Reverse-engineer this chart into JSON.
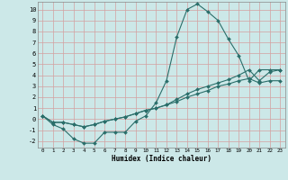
{
  "title": "",
  "xlabel": "Humidex (Indice chaleur)",
  "bg_color": "#cce8e8",
  "grid_color": "#d4a0a0",
  "line_color": "#2a6e6a",
  "xlim": [
    -0.5,
    23.5
  ],
  "ylim": [
    -2.6,
    10.7
  ],
  "xticks": [
    0,
    1,
    2,
    3,
    4,
    5,
    6,
    7,
    8,
    9,
    10,
    11,
    12,
    13,
    14,
    15,
    16,
    17,
    18,
    19,
    20,
    21,
    22,
    23
  ],
  "yticks": [
    -2,
    -1,
    0,
    1,
    2,
    3,
    4,
    5,
    6,
    7,
    8,
    9,
    10
  ],
  "line1_x": [
    0,
    1,
    2,
    3,
    4,
    5,
    6,
    7,
    8,
    9,
    10,
    11,
    12,
    13,
    14,
    15,
    16,
    17,
    18,
    19,
    20,
    21,
    22,
    23
  ],
  "line1_y": [
    0.3,
    -0.5,
    -0.9,
    -1.8,
    -2.2,
    -2.2,
    -1.2,
    -1.2,
    -1.2,
    -0.2,
    0.3,
    1.5,
    3.5,
    7.5,
    10.0,
    10.5,
    9.8,
    9.0,
    7.3,
    5.8,
    3.5,
    4.5,
    4.5,
    4.5
  ],
  "line2_x": [
    0,
    1,
    2,
    3,
    4,
    5,
    6,
    7,
    8,
    9,
    10,
    11,
    12,
    13,
    14,
    15,
    16,
    17,
    18,
    19,
    20,
    21,
    22,
    23
  ],
  "line2_y": [
    0.3,
    -0.3,
    -0.3,
    -0.5,
    -0.7,
    -0.5,
    -0.2,
    0.0,
    0.2,
    0.5,
    0.8,
    1.0,
    1.3,
    1.6,
    2.0,
    2.3,
    2.6,
    3.0,
    3.2,
    3.5,
    3.7,
    3.3,
    3.5,
    3.5
  ],
  "line3_x": [
    0,
    1,
    2,
    3,
    4,
    5,
    6,
    7,
    8,
    9,
    10,
    11,
    12,
    13,
    14,
    15,
    16,
    17,
    18,
    19,
    20,
    21,
    22,
    23
  ],
  "line3_y": [
    0.3,
    -0.3,
    -0.3,
    -0.5,
    -0.7,
    -0.5,
    -0.2,
    0.0,
    0.2,
    0.5,
    0.8,
    1.0,
    1.3,
    1.8,
    2.3,
    2.7,
    3.0,
    3.3,
    3.6,
    4.0,
    4.5,
    3.5,
    4.3,
    4.5
  ],
  "xlabel_fontsize": 5.5,
  "tick_fontsize_x": 4.2,
  "tick_fontsize_y": 5.0,
  "marker_size": 2.0,
  "line_width": 0.8
}
